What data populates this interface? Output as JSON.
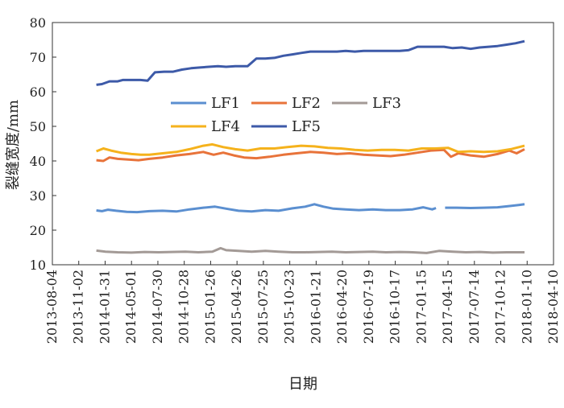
{
  "chart_data": {
    "type": "line",
    "title": "",
    "xlabel": "日期",
    "ylabel": "裂缝宽度/mm",
    "x_ticks": [
      "2013-08-04",
      "2013-11-02",
      "2014-01-31",
      "2014-05-01",
      "2014-07-30",
      "2014-10-28",
      "2015-01-26",
      "2015-04-26",
      "2015-07-25",
      "2015-10-23",
      "2016-01-21",
      "2016-04-20",
      "2016-07-19",
      "2016-10-17",
      "2017-01-15",
      "2017-04-15",
      "2017-07-14",
      "2017-10-12",
      "2018-01-10",
      "2018-04-10"
    ],
    "xlim": [
      "2013-08-04",
      "2018-04-10"
    ],
    "ylim": [
      10,
      80
    ],
    "y_ticks": [
      10,
      20,
      30,
      40,
      50,
      60,
      70,
      80
    ],
    "grid": false,
    "legend_position": "upper-left inside plot",
    "series": [
      {
        "name": "LF1",
        "color": "#5b8fd0",
        "segments": [
          [
            [
              "2014-01-01",
              25.7
            ],
            [
              "2014-01-20",
              25.5
            ],
            [
              "2014-02-10",
              25.9
            ],
            [
              "2014-03-10",
              25.6
            ],
            [
              "2014-04-15",
              25.3
            ],
            [
              "2014-05-20",
              25.2
            ],
            [
              "2014-07-01",
              25.5
            ],
            [
              "2014-08-15",
              25.6
            ],
            [
              "2014-10-01",
              25.4
            ],
            [
              "2014-11-15",
              26.0
            ],
            [
              "2015-01-01",
              26.5
            ],
            [
              "2015-02-10",
              26.8
            ],
            [
              "2015-03-20",
              26.2
            ],
            [
              "2015-05-01",
              25.6
            ],
            [
              "2015-06-15",
              25.4
            ],
            [
              "2015-08-01",
              25.8
            ],
            [
              "2015-09-15",
              25.6
            ],
            [
              "2015-11-01",
              26.3
            ],
            [
              "2015-12-15",
              26.8
            ],
            [
              "2016-01-15",
              27.5
            ],
            [
              "2016-02-15",
              26.8
            ],
            [
              "2016-03-20",
              26.2
            ],
            [
              "2016-05-01",
              26.0
            ],
            [
              "2016-06-15",
              25.8
            ],
            [
              "2016-08-01",
              26.0
            ],
            [
              "2016-09-15",
              25.8
            ],
            [
              "2016-11-01",
              25.8
            ],
            [
              "2016-12-15",
              26.0
            ],
            [
              "2017-01-20",
              26.6
            ],
            [
              "2017-02-20",
              26.0
            ],
            [
              "2017-03-05",
              26.4
            ]
          ],
          [
            [
              "2017-04-05",
              26.5
            ],
            [
              "2017-05-15",
              26.5
            ],
            [
              "2017-07-01",
              26.4
            ],
            [
              "2017-08-15",
              26.5
            ],
            [
              "2017-10-01",
              26.6
            ],
            [
              "2017-11-15",
              27.0
            ],
            [
              "2017-12-15",
              27.3
            ],
            [
              "2018-01-01",
              27.5
            ]
          ]
        ]
      },
      {
        "name": "LF2",
        "color": "#e8733a",
        "segments": [
          [
            [
              "2014-01-01",
              40.2
            ],
            [
              "2014-01-25",
              40.0
            ],
            [
              "2014-02-15",
              41.0
            ],
            [
              "2014-03-15",
              40.6
            ],
            [
              "2014-04-20",
              40.4
            ],
            [
              "2014-05-25",
              40.2
            ],
            [
              "2014-07-01",
              40.6
            ],
            [
              "2014-08-15",
              41.0
            ],
            [
              "2014-10-01",
              41.6
            ],
            [
              "2014-11-15",
              42.0
            ],
            [
              "2015-01-01",
              42.6
            ],
            [
              "2015-02-05",
              41.8
            ],
            [
              "2015-03-10",
              42.4
            ],
            [
              "2015-04-15",
              41.6
            ],
            [
              "2015-05-20",
              41.0
            ],
            [
              "2015-07-01",
              40.8
            ],
            [
              "2015-08-15",
              41.2
            ],
            [
              "2015-10-01",
              41.8
            ],
            [
              "2015-11-15",
              42.2
            ],
            [
              "2016-01-01",
              42.6
            ],
            [
              "2016-02-15",
              42.4
            ],
            [
              "2016-04-01",
              42.0
            ],
            [
              "2016-05-15",
              42.2
            ],
            [
              "2016-07-01",
              41.8
            ],
            [
              "2016-08-15",
              41.6
            ],
            [
              "2016-10-01",
              41.4
            ],
            [
              "2016-11-15",
              41.8
            ],
            [
              "2017-01-01",
              42.4
            ],
            [
              "2017-02-15",
              43.0
            ],
            [
              "2017-04-01",
              43.2
            ],
            [
              "2017-04-25",
              41.2
            ],
            [
              "2017-05-20",
              42.2
            ],
            [
              "2017-07-01",
              41.6
            ],
            [
              "2017-08-15",
              41.2
            ],
            [
              "2017-10-01",
              42.0
            ],
            [
              "2017-11-10",
              43.0
            ],
            [
              "2017-12-05",
              42.2
            ],
            [
              "2018-01-01",
              43.4
            ]
          ]
        ]
      },
      {
        "name": "LF3",
        "color": "#a39a96",
        "segments": [
          [
            [
              "2014-01-01",
              14.1
            ],
            [
              "2014-02-01",
              13.8
            ],
            [
              "2014-03-15",
              13.6
            ],
            [
              "2014-05-01",
              13.5
            ],
            [
              "2014-06-15",
              13.7
            ],
            [
              "2014-08-01",
              13.6
            ],
            [
              "2014-09-15",
              13.7
            ],
            [
              "2014-11-01",
              13.8
            ],
            [
              "2014-12-15",
              13.6
            ],
            [
              "2015-02-01",
              13.8
            ],
            [
              "2015-03-01",
              14.8
            ],
            [
              "2015-03-20",
              14.2
            ],
            [
              "2015-05-01",
              14.0
            ],
            [
              "2015-06-15",
              13.8
            ],
            [
              "2015-08-01",
              14.0
            ],
            [
              "2015-09-15",
              13.8
            ],
            [
              "2015-11-01",
              13.6
            ],
            [
              "2015-12-15",
              13.6
            ],
            [
              "2016-02-01",
              13.7
            ],
            [
              "2016-03-15",
              13.8
            ],
            [
              "2016-05-01",
              13.6
            ],
            [
              "2016-06-15",
              13.7
            ],
            [
              "2016-08-01",
              13.8
            ],
            [
              "2016-09-15",
              13.6
            ],
            [
              "2016-11-01",
              13.7
            ],
            [
              "2016-12-15",
              13.6
            ],
            [
              "2017-02-01",
              13.4
            ],
            [
              "2017-03-15",
              14.0
            ],
            [
              "2017-05-01",
              13.8
            ],
            [
              "2017-06-15",
              13.6
            ],
            [
              "2017-08-01",
              13.7
            ],
            [
              "2017-09-15",
              13.5
            ],
            [
              "2017-11-01",
              13.6
            ],
            [
              "2018-01-01",
              13.6
            ]
          ]
        ]
      },
      {
        "name": "LF4",
        "color": "#f5b21c",
        "segments": [
          [
            [
              "2014-01-01",
              42.8
            ],
            [
              "2014-01-25",
              43.6
            ],
            [
              "2014-02-20",
              43.0
            ],
            [
              "2014-03-25",
              42.4
            ],
            [
              "2014-05-01",
              42.0
            ],
            [
              "2014-06-01",
              41.8
            ],
            [
              "2014-07-01",
              41.8
            ],
            [
              "2014-08-15",
              42.2
            ],
            [
              "2014-10-01",
              42.6
            ],
            [
              "2014-11-15",
              43.4
            ],
            [
              "2015-01-01",
              44.4
            ],
            [
              "2015-02-01",
              44.8
            ],
            [
              "2015-03-10",
              44.0
            ],
            [
              "2015-04-20",
              43.4
            ],
            [
              "2015-06-01",
              43.0
            ],
            [
              "2015-07-15",
              43.6
            ],
            [
              "2015-09-01",
              43.6
            ],
            [
              "2015-10-15",
              44.0
            ],
            [
              "2015-12-01",
              44.4
            ],
            [
              "2016-01-15",
              44.2
            ],
            [
              "2016-03-01",
              43.8
            ],
            [
              "2016-04-15",
              43.6
            ],
            [
              "2016-06-01",
              43.2
            ],
            [
              "2016-07-15",
              43.0
            ],
            [
              "2016-09-01",
              43.2
            ],
            [
              "2016-10-15",
              43.2
            ],
            [
              "2016-12-01",
              43.0
            ],
            [
              "2017-01-15",
              43.6
            ],
            [
              "2017-03-01",
              43.6
            ],
            [
              "2017-04-15",
              43.8
            ],
            [
              "2017-05-20",
              42.6
            ],
            [
              "2017-07-01",
              42.8
            ],
            [
              "2017-08-15",
              42.6
            ],
            [
              "2017-10-01",
              42.8
            ],
            [
              "2017-11-15",
              43.4
            ],
            [
              "2018-01-01",
              44.4
            ]
          ]
        ]
      },
      {
        "name": "LF5",
        "color": "#3d5aa8",
        "segments": [
          [
            [
              "2014-01-01",
              62.0
            ],
            [
              "2014-01-20",
              62.2
            ],
            [
              "2014-02-15",
              63.0
            ],
            [
              "2014-03-15",
              63.0
            ],
            [
              "2014-04-01",
              63.4
            ],
            [
              "2014-05-01",
              63.4
            ],
            [
              "2014-06-01",
              63.4
            ],
            [
              "2014-06-25",
              63.2
            ],
            [
              "2014-07-20",
              65.6
            ],
            [
              "2014-08-20",
              65.8
            ],
            [
              "2014-09-20",
              65.8
            ],
            [
              "2014-10-20",
              66.4
            ],
            [
              "2014-11-20",
              66.8
            ],
            [
              "2014-12-20",
              67.0
            ],
            [
              "2015-01-20",
              67.2
            ],
            [
              "2015-02-20",
              67.4
            ],
            [
              "2015-03-20",
              67.2
            ],
            [
              "2015-04-20",
              67.4
            ],
            [
              "2015-06-01",
              67.4
            ],
            [
              "2015-07-01",
              69.6
            ],
            [
              "2015-08-01",
              69.6
            ],
            [
              "2015-09-01",
              69.8
            ],
            [
              "2015-10-01",
              70.4
            ],
            [
              "2015-11-01",
              70.8
            ],
            [
              "2015-12-01",
              71.2
            ],
            [
              "2016-01-01",
              71.6
            ],
            [
              "2016-02-01",
              71.6
            ],
            [
              "2016-03-01",
              71.6
            ],
            [
              "2016-04-01",
              71.6
            ],
            [
              "2016-05-01",
              71.8
            ],
            [
              "2016-06-01",
              71.6
            ],
            [
              "2016-07-01",
              71.8
            ],
            [
              "2016-08-01",
              71.8
            ],
            [
              "2016-09-01",
              71.8
            ],
            [
              "2016-10-01",
              71.8
            ],
            [
              "2016-11-01",
              71.8
            ],
            [
              "2016-12-01",
              72.0
            ],
            [
              "2017-01-01",
              73.0
            ],
            [
              "2017-02-01",
              73.0
            ],
            [
              "2017-03-01",
              73.0
            ],
            [
              "2017-04-01",
              73.0
            ],
            [
              "2017-05-01",
              72.6
            ],
            [
              "2017-06-01",
              72.8
            ],
            [
              "2017-07-01",
              72.4
            ],
            [
              "2017-08-01",
              72.8
            ],
            [
              "2017-09-01",
              73.0
            ],
            [
              "2017-10-01",
              73.2
            ],
            [
              "2017-11-01",
              73.6
            ],
            [
              "2017-12-01",
              74.0
            ],
            [
              "2018-01-01",
              74.6
            ]
          ]
        ]
      }
    ]
  }
}
